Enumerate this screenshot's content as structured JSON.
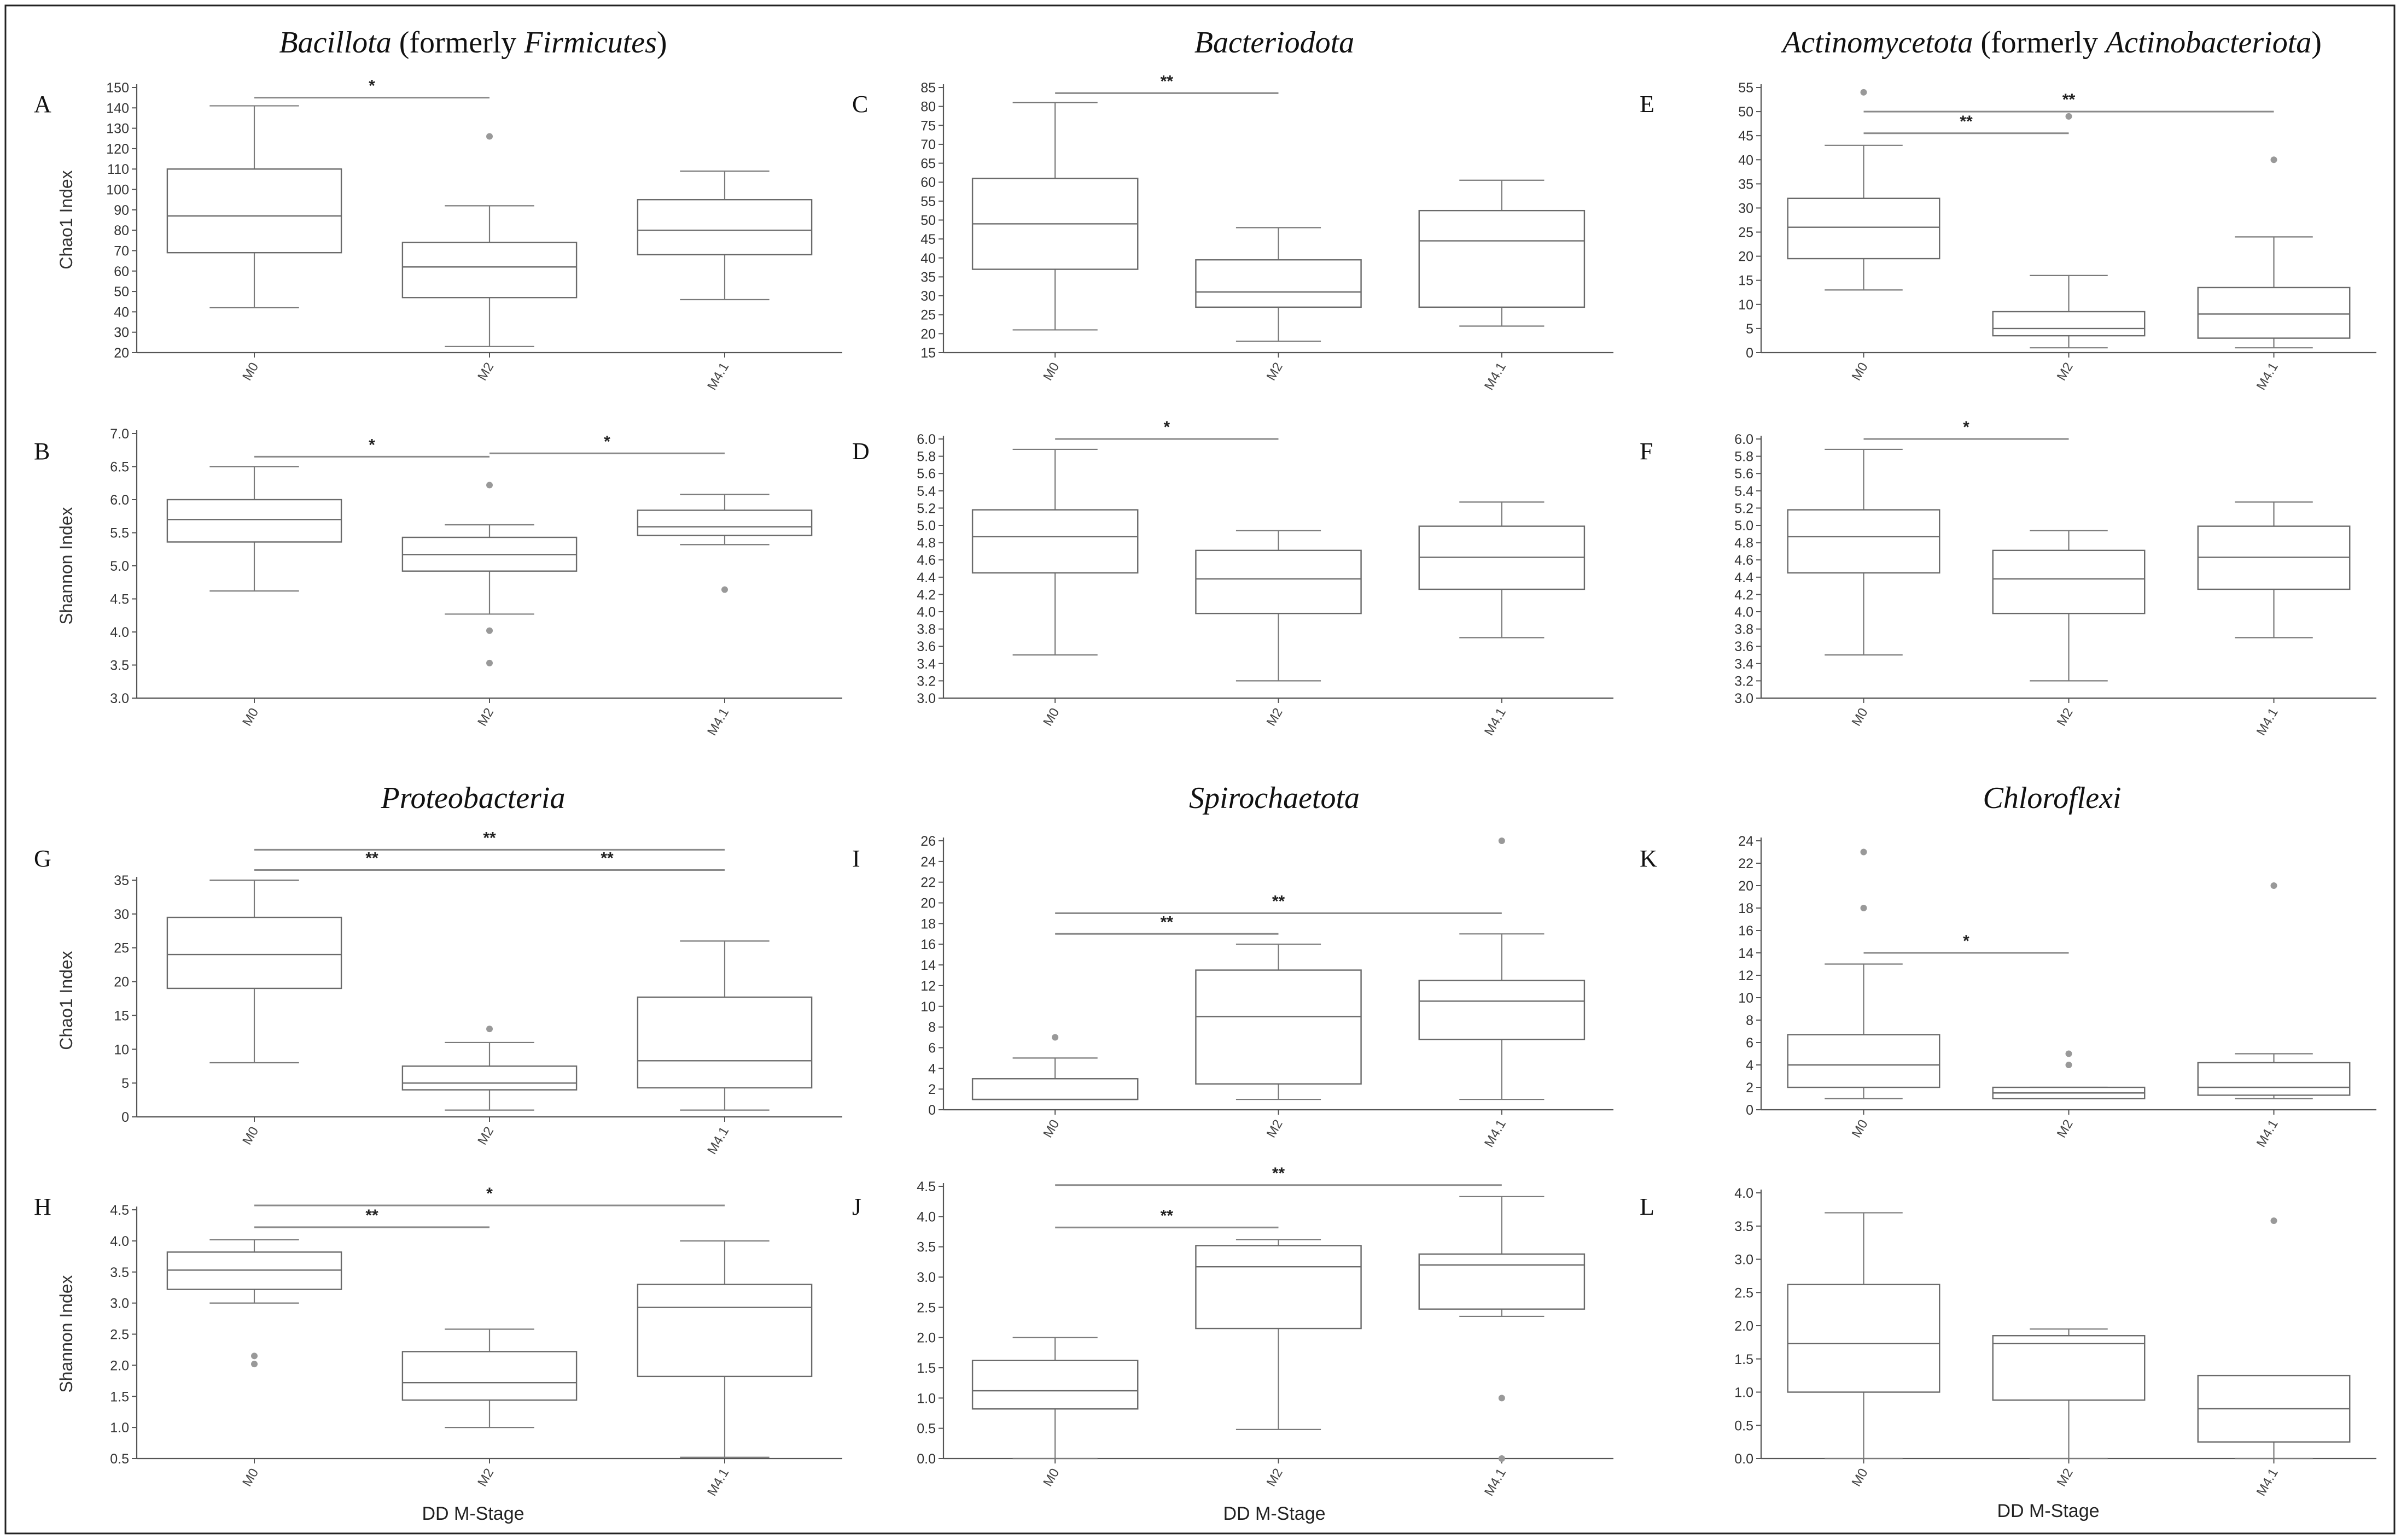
{
  "figure": {
    "x_axis_label": "DD M-Stage",
    "y_labels": {
      "chao1": "Chao1 Index",
      "shannon": "Shannon Index"
    },
    "titles": [
      {
        "parts": [
          {
            "t": "Bacillota",
            "i": true
          },
          {
            "t": " (formerly ",
            "i": false
          },
          {
            "t": "Firmicutes",
            "i": true
          },
          {
            "t": ")",
            "i": false
          }
        ]
      },
      {
        "parts": [
          {
            "t": "Bacteriodota",
            "i": true
          }
        ]
      },
      {
        "parts": [
          {
            "t": "Actinomycetota",
            "i": true
          },
          {
            "t": " (formerly ",
            "i": false
          },
          {
            "t": "Actinobacteriota",
            "i": true
          },
          {
            "t": ")",
            "i": false
          }
        ]
      },
      {
        "parts": [
          {
            "t": "Proteobacteria",
            "i": true
          }
        ]
      },
      {
        "parts": [
          {
            "t": "Spirochaetota",
            "i": true
          }
        ]
      },
      {
        "parts": [
          {
            "t": "Chloroflexi",
            "i": true
          }
        ]
      }
    ]
  },
  "chart_data": [
    {
      "id": "A",
      "type": "box",
      "metric": "Chao1 Index",
      "categories": [
        "M0",
        "M2",
        "M4.1"
      ],
      "yticks": [
        20,
        30,
        40,
        50,
        60,
        70,
        80,
        90,
        100,
        110,
        120,
        130,
        140,
        150
      ],
      "ylim": [
        20,
        150
      ],
      "boxes": [
        {
          "min": 42,
          "q1": 69,
          "median": 87,
          "q3": 110,
          "max": 141,
          "outliers": []
        },
        {
          "min": 23,
          "q1": 47,
          "median": 62,
          "q3": 74,
          "max": 92,
          "outliers": [
            126
          ]
        },
        {
          "min": 46,
          "q1": 68,
          "median": 80,
          "q3": 95,
          "max": 109,
          "outliers": []
        }
      ],
      "significance": [
        {
          "from": 0,
          "to": 1,
          "y": 145,
          "label": "*"
        }
      ]
    },
    {
      "id": "C",
      "type": "box",
      "metric": "Chao1 Index",
      "categories": [
        "M0",
        "M2",
        "M4.1"
      ],
      "yticks": [
        15,
        20,
        25,
        30,
        35,
        40,
        45,
        50,
        55,
        60,
        65,
        70,
        75,
        80,
        85
      ],
      "ylim": [
        15,
        85
      ],
      "boxes": [
        {
          "min": 21,
          "q1": 37,
          "median": 49,
          "q3": 61,
          "max": 81,
          "outliers": []
        },
        {
          "min": 18,
          "q1": 27,
          "median": 31,
          "q3": 39.5,
          "max": 48,
          "outliers": []
        },
        {
          "min": 22,
          "q1": 27,
          "median": 44.5,
          "q3": 52.5,
          "max": 60.5,
          "outliers": []
        }
      ],
      "significance": [
        {
          "from": 0,
          "to": 1,
          "y": 83.5,
          "label": "**"
        }
      ]
    },
    {
      "id": "E",
      "type": "box",
      "metric": "Chao1 Index",
      "categories": [
        "M0",
        "M2",
        "M4.1"
      ],
      "yticks": [
        0,
        5,
        10,
        15,
        20,
        25,
        30,
        35,
        40,
        45,
        50,
        55
      ],
      "ylim": [
        0,
        55
      ],
      "boxes": [
        {
          "min": 13,
          "q1": 19.5,
          "median": 26,
          "q3": 32,
          "max": 43,
          "outliers": [
            54
          ]
        },
        {
          "min": 1,
          "q1": 3.5,
          "median": 5,
          "q3": 8.5,
          "max": 16,
          "outliers": [
            49
          ]
        },
        {
          "min": 1,
          "q1": 3,
          "median": 8,
          "q3": 13.5,
          "max": 24,
          "outliers": [
            40
          ]
        }
      ],
      "significance": [
        {
          "from": 0,
          "to": 1,
          "y": 45.5,
          "label": "**"
        },
        {
          "from": 0,
          "to": 2,
          "y": 50,
          "label": "**"
        }
      ]
    },
    {
      "id": "B",
      "type": "box",
      "metric": "Shannon Index",
      "categories": [
        "M0",
        "M2",
        "M4.1"
      ],
      "yticks": [
        3.0,
        3.5,
        4.0,
        4.5,
        5.0,
        5.5,
        6.0,
        6.5,
        7.0
      ],
      "ylim": [
        3.0,
        7.0
      ],
      "boxes": [
        {
          "min": 4.62,
          "q1": 5.36,
          "median": 5.7,
          "q3": 6.0,
          "max": 6.5,
          "outliers": []
        },
        {
          "min": 4.27,
          "q1": 4.92,
          "median": 5.17,
          "q3": 5.43,
          "max": 5.62,
          "outliers": [
            6.22,
            4.02,
            3.53
          ]
        },
        {
          "min": 5.32,
          "q1": 5.46,
          "median": 5.59,
          "q3": 5.84,
          "max": 6.08,
          "outliers": [
            4.64
          ]
        }
      ],
      "significance": [
        {
          "from": 0,
          "to": 1,
          "y": 6.65,
          "label": "*"
        },
        {
          "from": 1,
          "to": 2,
          "y": 6.7,
          "label": "*"
        }
      ]
    },
    {
      "id": "D",
      "type": "box",
      "metric": "Shannon Index",
      "categories": [
        "M0",
        "M2",
        "M4.1"
      ],
      "yticks": [
        3.0,
        3.2,
        3.4,
        3.6,
        3.8,
        4.0,
        4.2,
        4.4,
        4.6,
        4.8,
        5.0,
        5.2,
        5.4,
        5.6,
        5.8,
        6.0
      ],
      "ylim": [
        3.0,
        6.0
      ],
      "boxes": [
        {
          "min": 3.5,
          "q1": 4.45,
          "median": 4.87,
          "q3": 5.18,
          "max": 5.88,
          "outliers": []
        },
        {
          "min": 3.2,
          "q1": 3.98,
          "median": 4.38,
          "q3": 4.71,
          "max": 4.94,
          "outliers": []
        },
        {
          "min": 3.7,
          "q1": 4.26,
          "median": 4.63,
          "q3": 4.99,
          "max": 5.27,
          "outliers": []
        }
      ],
      "significance": [
        {
          "from": 0,
          "to": 1,
          "y": 6.0,
          "label": "*"
        }
      ]
    },
    {
      "id": "F",
      "type": "box",
      "metric": "Shannon Index",
      "categories": [
        "M0",
        "M2",
        "M4.1"
      ],
      "yticks": [
        3.0,
        3.2,
        3.4,
        3.6,
        3.8,
        4.0,
        4.2,
        4.4,
        4.6,
        4.8,
        5.0,
        5.2,
        5.4,
        5.6,
        5.8,
        6.0
      ],
      "ylim": [
        3.0,
        6.0
      ],
      "boxes": [
        {
          "min": 3.5,
          "q1": 4.45,
          "median": 4.87,
          "q3": 5.18,
          "max": 5.88,
          "outliers": []
        },
        {
          "min": 3.2,
          "q1": 3.98,
          "median": 4.38,
          "q3": 4.71,
          "max": 4.94,
          "outliers": []
        },
        {
          "min": 3.7,
          "q1": 4.26,
          "median": 4.63,
          "q3": 4.99,
          "max": 5.27,
          "outliers": []
        }
      ],
      "significance": [
        {
          "from": 0,
          "to": 1,
          "y": 6.0,
          "label": "*"
        }
      ]
    },
    {
      "id": "G",
      "type": "box",
      "metric": "Chao1 Index",
      "categories": [
        "M0",
        "M2",
        "M4.1"
      ],
      "yticks": [
        0,
        5,
        10,
        15,
        20,
        25,
        30,
        35
      ],
      "ylim": [
        0,
        35
      ],
      "boxes": [
        {
          "min": 8,
          "q1": 19,
          "median": 24,
          "q3": 29.5,
          "max": 35,
          "outliers": []
        },
        {
          "min": 1,
          "q1": 4,
          "median": 5,
          "q3": 7.5,
          "max": 11,
          "outliers": [
            13
          ]
        },
        {
          "min": 1,
          "q1": 4.3,
          "median": 8.3,
          "q3": 17.7,
          "max": 26,
          "outliers": []
        }
      ],
      "significance": [
        {
          "from": 0,
          "to": 1,
          "y": 36.5,
          "label": "**"
        },
        {
          "from": 1,
          "to": 2,
          "y": 36.5,
          "label": "**"
        },
        {
          "from": 0,
          "to": 2,
          "y": 39.5,
          "label": "**"
        }
      ]
    },
    {
      "id": "I",
      "type": "box",
      "metric": "Chao1 Index",
      "categories": [
        "M0",
        "M2",
        "M4.1"
      ],
      "yticks": [
        0,
        2,
        4,
        6,
        8,
        10,
        12,
        14,
        16,
        18,
        20,
        22,
        24,
        26
      ],
      "ylim": [
        0,
        26
      ],
      "boxes": [
        {
          "min": 1,
          "q1": 1,
          "median": 1,
          "q3": 3,
          "max": 5,
          "outliers": [
            7
          ]
        },
        {
          "min": 1,
          "q1": 2.5,
          "median": 9,
          "q3": 13.5,
          "max": 16,
          "outliers": []
        },
        {
          "min": 1,
          "q1": 6.8,
          "median": 10.5,
          "q3": 12.5,
          "max": 17,
          "outliers": [
            26
          ]
        }
      ],
      "significance": [
        {
          "from": 0,
          "to": 1,
          "y": 17,
          "label": "**"
        },
        {
          "from": 0,
          "to": 2,
          "y": 19,
          "label": "**"
        }
      ]
    },
    {
      "id": "K",
      "type": "box",
      "metric": "Chao1 Index",
      "categories": [
        "M0",
        "M2",
        "M4.1"
      ],
      "yticks": [
        0,
        2,
        4,
        6,
        8,
        10,
        12,
        14,
        16,
        18,
        20,
        22,
        24
      ],
      "ylim": [
        0,
        24
      ],
      "boxes": [
        {
          "min": 1,
          "q1": 2,
          "median": 4,
          "q3": 6.7,
          "max": 13,
          "outliers": [
            23,
            18
          ]
        },
        {
          "min": 1,
          "q1": 1,
          "median": 1.5,
          "q3": 2,
          "max": 2,
          "outliers": [
            5,
            4
          ]
        },
        {
          "min": 1,
          "q1": 1.3,
          "median": 2,
          "q3": 4.2,
          "max": 5,
          "outliers": [
            20
          ]
        }
      ],
      "significance": [
        {
          "from": 0,
          "to": 1,
          "y": 14,
          "label": "*"
        }
      ]
    },
    {
      "id": "H",
      "type": "box",
      "metric": "Shannon Index",
      "categories": [
        "M0",
        "M2",
        "M4.1"
      ],
      "yticks": [
        0.5,
        1.0,
        1.5,
        2.0,
        2.5,
        3.0,
        3.5,
        4.0,
        4.5
      ],
      "ylim": [
        0.5,
        4.5
      ],
      "boxes": [
        {
          "min": 3.0,
          "q1": 3.22,
          "median": 3.53,
          "q3": 3.82,
          "max": 4.02,
          "outliers": [
            2.15,
            2.02
          ]
        },
        {
          "min": 1.0,
          "q1": 1.44,
          "median": 1.72,
          "q3": 2.22,
          "max": 2.58,
          "outliers": []
        },
        {
          "min": 0.52,
          "q1": 1.82,
          "median": 2.93,
          "q3": 3.3,
          "max": 4.0,
          "outliers": []
        }
      ],
      "significance": [
        {
          "from": 0,
          "to": 1,
          "y": 4.22,
          "label": "**"
        },
        {
          "from": 0,
          "to": 2,
          "y": 4.57,
          "label": "*"
        }
      ]
    },
    {
      "id": "J",
      "type": "box",
      "metric": "Shannon Index",
      "categories": [
        "M0",
        "M2",
        "M4.1"
      ],
      "yticks": [
        0.0,
        0.5,
        1.0,
        1.5,
        2.0,
        2.5,
        3.0,
        3.5,
        4.0,
        4.5
      ],
      "ylim": [
        0.0,
        4.5
      ],
      "boxes": [
        {
          "min": 0.0,
          "q1": 0.82,
          "median": 1.12,
          "q3": 1.62,
          "max": 2.0,
          "outliers": []
        },
        {
          "min": 0.48,
          "q1": 2.15,
          "median": 3.17,
          "q3": 3.52,
          "max": 3.62,
          "outliers": []
        },
        {
          "min": 2.35,
          "q1": 2.47,
          "median": 3.2,
          "q3": 3.38,
          "max": 4.33,
          "outliers": [
            1.0,
            0.0
          ]
        }
      ],
      "significance": [
        {
          "from": 0,
          "to": 1,
          "y": 3.82,
          "label": "**"
        },
        {
          "from": 0,
          "to": 2,
          "y": 4.52,
          "label": "**"
        }
      ]
    },
    {
      "id": "L",
      "type": "box",
      "metric": "Shannon Index",
      "categories": [
        "M0",
        "M2",
        "M4.1"
      ],
      "yticks": [
        0.0,
        0.5,
        1.0,
        1.5,
        2.0,
        2.5,
        3.0,
        3.5,
        4.0
      ],
      "ylim": [
        0.0,
        4.0
      ],
      "boxes": [
        {
          "min": 0.0,
          "q1": 1.0,
          "median": 1.73,
          "q3": 2.62,
          "max": 3.7,
          "outliers": []
        },
        {
          "min": 0.0,
          "q1": 0.88,
          "median": 1.73,
          "q3": 1.85,
          "max": 1.95,
          "outliers": []
        },
        {
          "min": 0.0,
          "q1": 0.25,
          "median": 0.75,
          "q3": 1.25,
          "max": 1.25,
          "outliers": [
            3.58
          ]
        }
      ],
      "significance": []
    }
  ]
}
